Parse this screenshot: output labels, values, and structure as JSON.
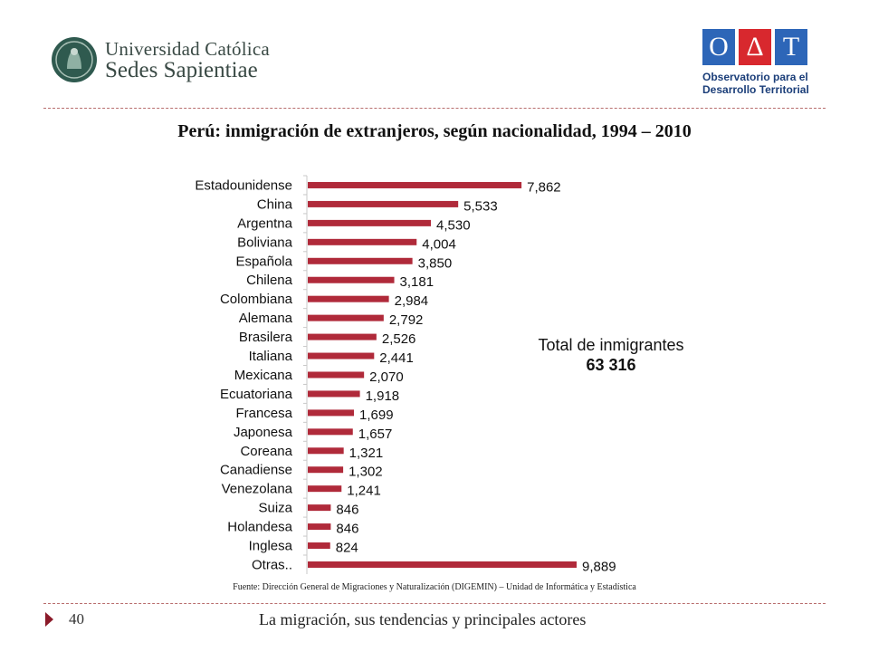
{
  "header": {
    "ucss_logo": {
      "line1": "Universidad Católica",
      "line2": "Sedes Sapientiae"
    },
    "oat_logo": {
      "letters": [
        "O",
        "Δ",
        "T"
      ],
      "line1": "Observatorio para el",
      "line2": "Desarrollo Territorial"
    }
  },
  "slide": {
    "title": "Perú: inmigración de extranjeros, según nacionalidad, 1994 – 2010",
    "annotation_label": "Total de inmigrantes",
    "annotation_value": "63 316",
    "source": "Fuente: Dirección General de Migraciones y Naturalización (DIGEMIN) – Unidad de Informática y Estadística"
  },
  "footer": {
    "page_number": "40",
    "text": "La migración, sus tendencias y principales actores"
  },
  "colors": {
    "bar": "#b02a3a",
    "accent": "#8b1b2a",
    "rule": "#b86d6d"
  },
  "chart_data": {
    "type": "bar",
    "orientation": "horizontal",
    "categories": [
      "Estadounidense",
      "China",
      "Argentna",
      "Boliviana",
      "Española",
      "Chilena",
      "Colombiana",
      "Alemana",
      "Brasilera",
      "Italiana",
      "Mexicana",
      "Ecuatoriana",
      "Francesa",
      "Japonesa",
      "Coreana",
      "Canadiense",
      "Venezolana",
      "Suiza",
      "Holandesa",
      "Inglesa",
      "Otras.."
    ],
    "values": [
      7862,
      5533,
      4530,
      4004,
      3850,
      3181,
      2984,
      2792,
      2526,
      2441,
      2070,
      1918,
      1699,
      1657,
      1321,
      1302,
      1241,
      846,
      846,
      824,
      9889
    ],
    "value_labels": [
      "7,862",
      "5,533",
      "4,530",
      "4,004",
      "3,850",
      "3,181",
      "2,984",
      "2,792",
      "2,526",
      "2,441",
      "2,070",
      "1,918",
      "1,699",
      "1,657",
      "1,321",
      "1,302",
      "1,241",
      "846",
      "846",
      "824",
      "9,889"
    ],
    "xlim": [
      0,
      10000
    ],
    "grid": false,
    "legend": "none"
  }
}
